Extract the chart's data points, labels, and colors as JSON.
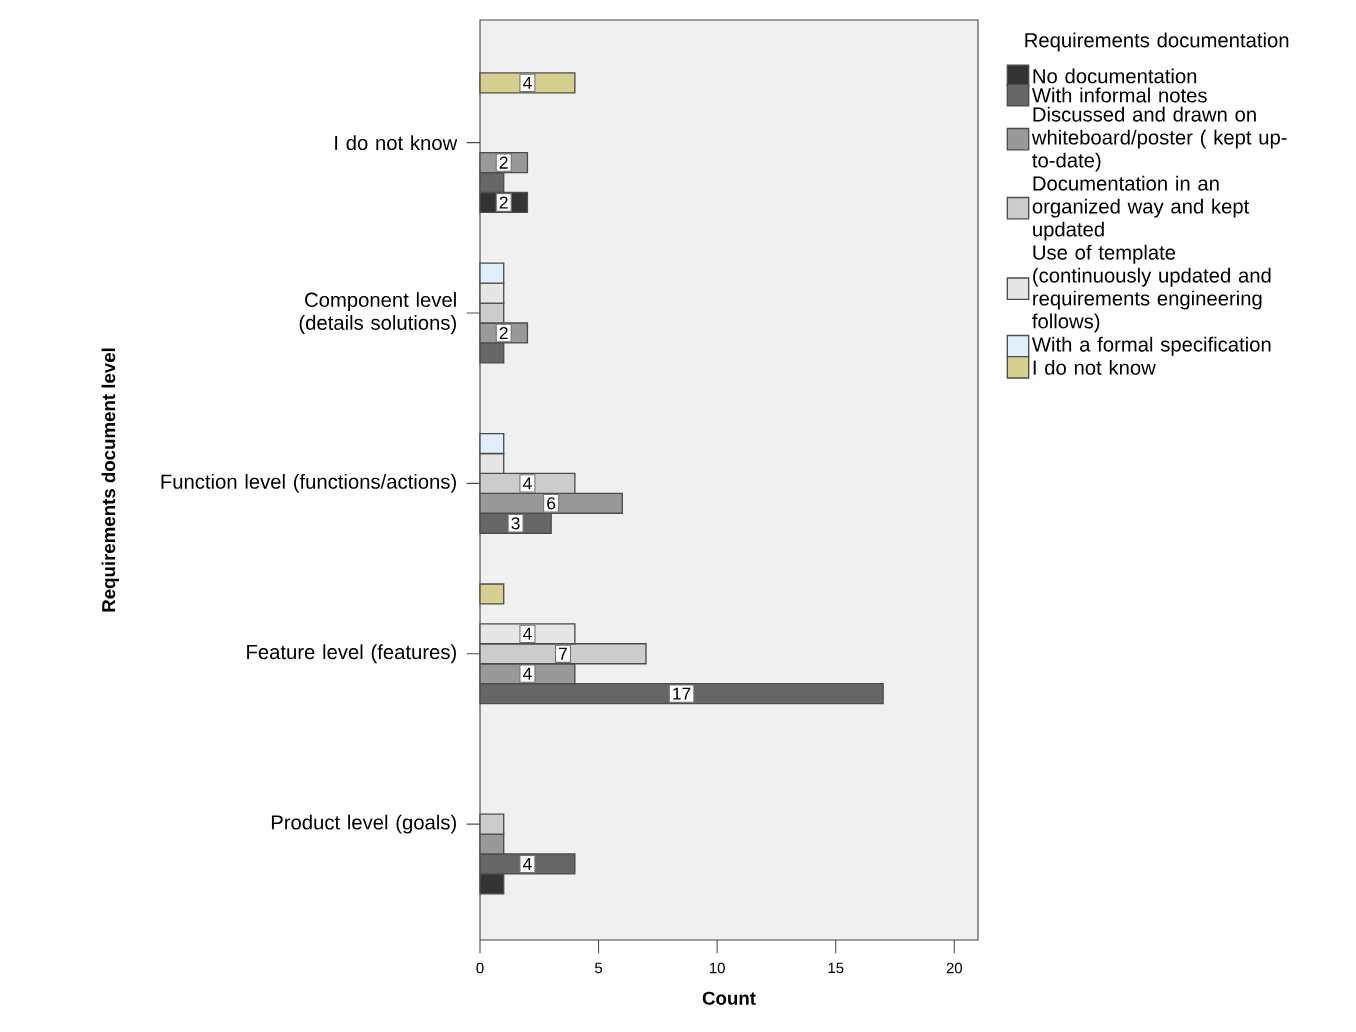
{
  "chart_data": {
    "type": "bar",
    "orientation": "horizontal",
    "xlabel": "Count",
    "ylabel": "Requirements document level",
    "legend_title": "Requirements documentation",
    "legend": "right",
    "categories": [
      "I do not know",
      "Component level (details solutions)",
      "Function level (functions/actions)",
      "Feature level (features)",
      "Product level (goals)"
    ],
    "xlim": [
      0,
      21
    ],
    "xticks": [
      0,
      5,
      10,
      15,
      20
    ],
    "series": [
      {
        "name": "No documentation",
        "color": "#333333",
        "values": [
          2,
          null,
          null,
          null,
          1
        ],
        "value_labels": [
          "2",
          null,
          null,
          null,
          null
        ]
      },
      {
        "name": "With informal notes",
        "color": "#666666",
        "values": [
          1,
          1,
          3,
          17,
          4
        ],
        "value_labels": [
          null,
          null,
          "3",
          "17",
          "4"
        ]
      },
      {
        "name": "Discussed and drawn on whiteboard/poster ( kept up-to-date)",
        "color": "#999999",
        "values": [
          2,
          2,
          6,
          4,
          1
        ],
        "value_labels": [
          "2",
          "2",
          "6",
          "4",
          null
        ]
      },
      {
        "name": "Documentation in an organized way and kept updated",
        "color": "#cccccc",
        "values": [
          null,
          1,
          4,
          7,
          1
        ],
        "value_labels": [
          null,
          null,
          "4",
          "7",
          null
        ]
      },
      {
        "name": "Use of template (continuously updated and requirements engineering follows)",
        "color": "#e6e6e6",
        "values": [
          null,
          1,
          1,
          4,
          null
        ],
        "value_labels": [
          null,
          null,
          null,
          "4",
          null
        ]
      },
      {
        "name": "With a formal specification",
        "color": "#e1eefc",
        "values": [
          null,
          1,
          1,
          null,
          null
        ],
        "value_labels": [
          null,
          null,
          null,
          null,
          null
        ]
      },
      {
        "name": "I do not know",
        "color": "#d6d090",
        "values": [
          4,
          null,
          null,
          1,
          null
        ],
        "value_labels": [
          "4",
          null,
          null,
          null,
          null
        ]
      }
    ]
  }
}
